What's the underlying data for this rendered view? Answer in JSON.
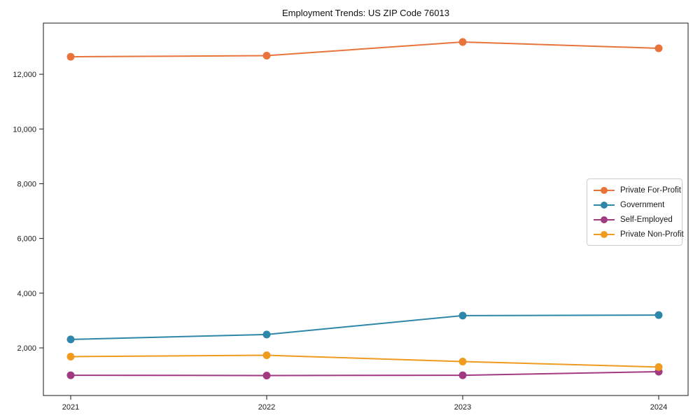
{
  "chart_data": {
    "type": "line",
    "title": "Employment Trends: US ZIP Code 76013",
    "x": [
      2021,
      2022,
      2023,
      2024
    ],
    "series": [
      {
        "name": "Private For-Profit",
        "color": "#e8743b",
        "values": [
          12640,
          12680,
          13180,
          12950
        ]
      },
      {
        "name": "Government",
        "color": "#2e87a8",
        "values": [
          2310,
          2490,
          3180,
          3200
        ]
      },
      {
        "name": "Self-Employed",
        "color": "#a23a82",
        "values": [
          1000,
          990,
          1000,
          1130
        ]
      },
      {
        "name": "Private Non-Profit",
        "color": "#ef9b20",
        "values": [
          1680,
          1730,
          1500,
          1300
        ]
      }
    ],
    "yticks": [
      2000,
      4000,
      6000,
      8000,
      10000,
      12000
    ],
    "ytick_labels": [
      "2,000",
      "4,000",
      "6,000",
      "8,000",
      "10,000",
      "12,000"
    ],
    "xtick_labels": [
      "2021",
      "2022",
      "2023",
      "2024"
    ],
    "ylim": [
      260,
      13870
    ],
    "grid": false,
    "legend_position": "right",
    "axis_color": "#1a1a1a",
    "background_color": "#ffffff"
  }
}
